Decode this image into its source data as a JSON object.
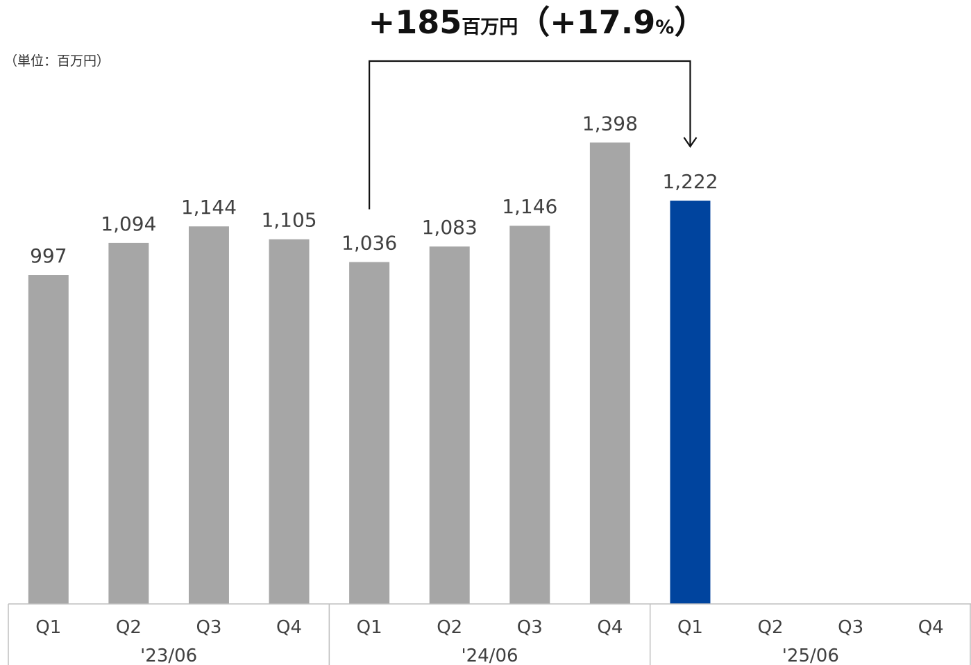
{
  "unit_label": "（単位：百万円）",
  "annotation": {
    "amount": "+185",
    "unit": "百万円",
    "pct_open": "（+17.9",
    "pct_sign": "%",
    "pct_close": "）",
    "from_index": 4,
    "to_index": 8
  },
  "colors": {
    "bar_default": "#a6a6a6",
    "bar_highlight": "#00449e",
    "axis": "#bfbfbf",
    "text": "#404040"
  },
  "chart_data": {
    "type": "bar",
    "categories": [
      "Q1",
      "Q2",
      "Q3",
      "Q4",
      "Q1",
      "Q2",
      "Q3",
      "Q4",
      "Q1",
      "Q2",
      "Q3",
      "Q4"
    ],
    "groups": [
      {
        "label": "'23/06",
        "start": 0,
        "end": 3
      },
      {
        "label": "'24/06",
        "start": 4,
        "end": 7
      },
      {
        "label": "'25/06",
        "start": 8,
        "end": 11
      }
    ],
    "values": [
      997,
      1094,
      1144,
      1105,
      1036,
      1083,
      1146,
      1398,
      1222,
      null,
      null,
      null
    ],
    "value_labels": [
      "997",
      "1,094",
      "1,144",
      "1,105",
      "1,036",
      "1,083",
      "1,146",
      "1,398",
      "1,222",
      "",
      "",
      ""
    ],
    "highlight_index": 8,
    "ylim": [
      0,
      1400
    ],
    "grid": false,
    "legend": "none",
    "title": "",
    "xlabel": "",
    "ylabel": ""
  }
}
